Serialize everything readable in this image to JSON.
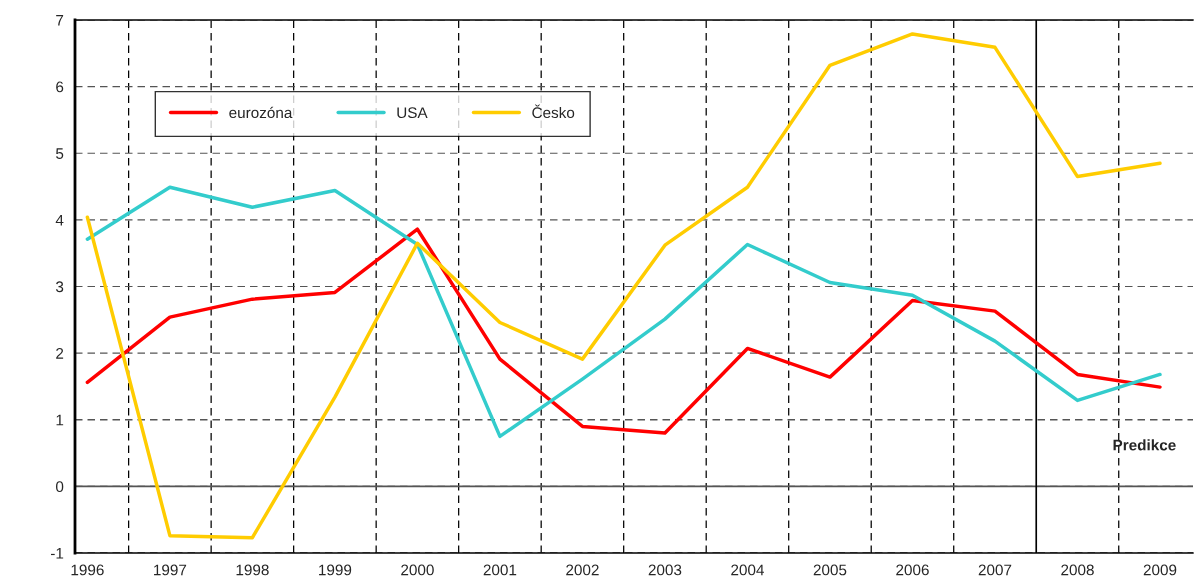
{
  "chart_data": {
    "type": "line",
    "x": [
      1996,
      1997,
      1998,
      1999,
      2000,
      2001,
      2002,
      2003,
      2004,
      2005,
      2006,
      2007,
      2008,
      2009
    ],
    "xlim": [
      1995.85,
      2009.4
    ],
    "xticks": [
      1996,
      1997,
      1998,
      1999,
      2000,
      2001,
      2002,
      2003,
      2004,
      2005,
      2006,
      2007,
      2008,
      2009
    ],
    "series": [
      {
        "name": "eurozóna",
        "color": "#ff0000",
        "values": [
          1.56,
          2.54,
          2.81,
          2.91,
          3.86,
          1.91,
          0.9,
          0.8,
          2.07,
          1.64,
          2.79,
          2.63,
          1.68,
          1.49
        ]
      },
      {
        "name": "USA",
        "color": "#33cccc",
        "values": [
          3.71,
          4.49,
          4.19,
          4.44,
          3.63,
          0.75,
          1.61,
          2.51,
          3.63,
          3.06,
          2.87,
          2.18,
          1.29,
          1.68
        ]
      },
      {
        "name": "Česko",
        "color": "#ffcc00",
        "values": [
          4.04,
          -0.74,
          -0.77,
          1.34,
          3.65,
          2.46,
          1.91,
          3.62,
          4.49,
          6.32,
          6.79,
          6.59,
          4.65,
          4.85
        ]
      }
    ],
    "ylim": [
      -1,
      7
    ],
    "yticks": [
      -1,
      0,
      1,
      2,
      3,
      4,
      5,
      6,
      7
    ],
    "ref_lines": [
      {
        "axis": "y",
        "value": 0,
        "color": "#555555"
      },
      {
        "axis": "x",
        "value": 2007.5,
        "color": "#000000"
      }
    ],
    "annotations": [
      "Predikce"
    ],
    "grid": true,
    "legend": "top left",
    "marker": "none",
    "line_style": "solid"
  }
}
